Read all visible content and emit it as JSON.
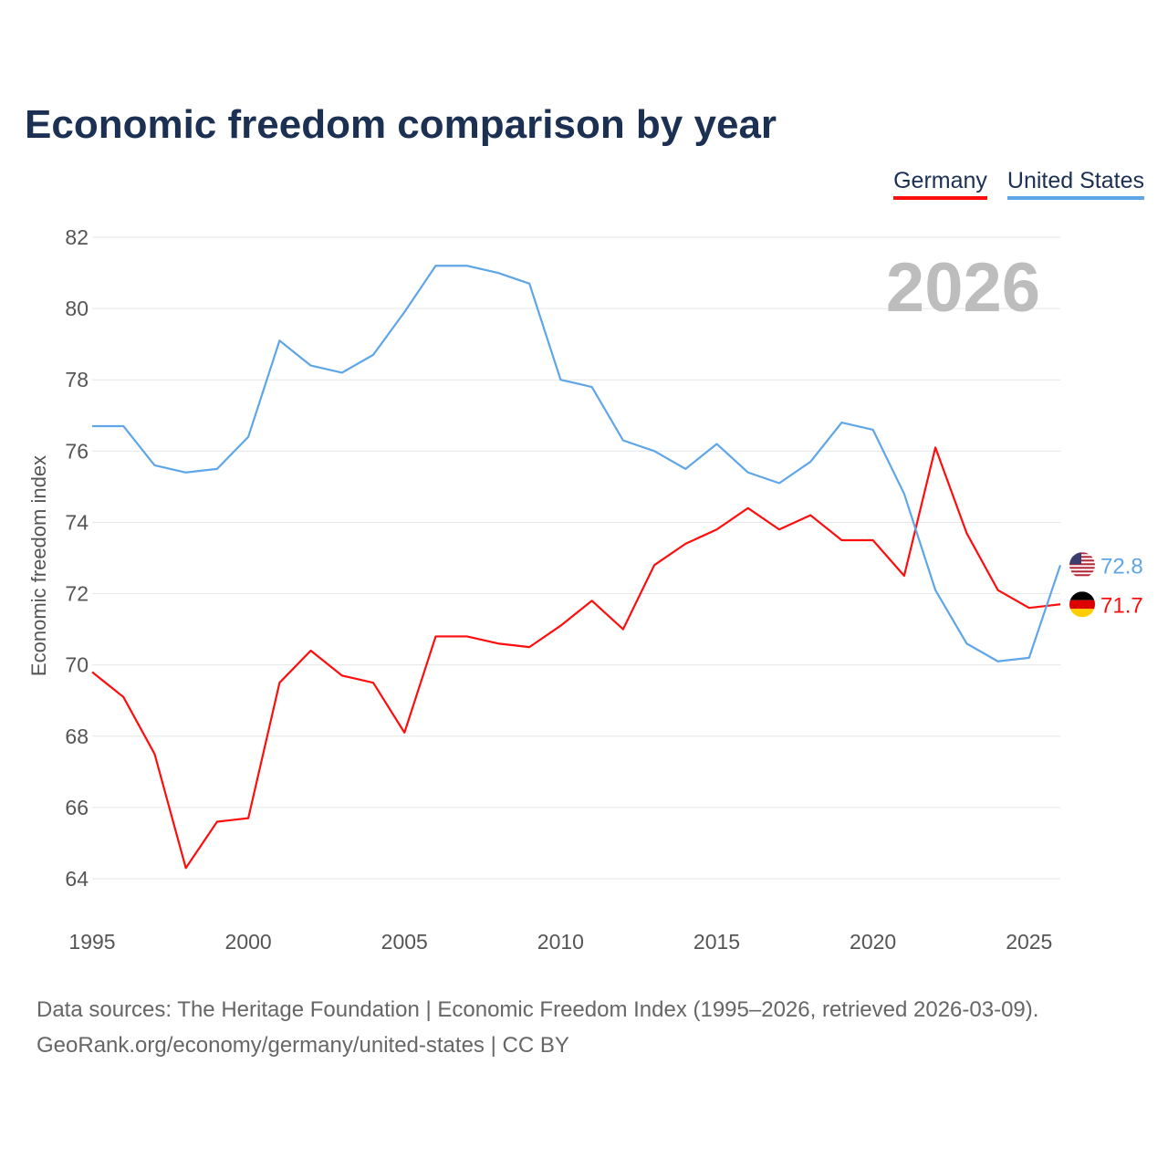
{
  "title": "Economic freedom comparison by year",
  "footer": {
    "line1": "Data sources: The Heritage Foundation | Economic Freedom Index (1995–2026, retrieved 2026-03-09).",
    "line2": "GeoRank.org/economy/germany/united-states | CC BY"
  },
  "chart_data": {
    "type": "line",
    "title": "Economic freedom comparison by year",
    "xlabel": "",
    "ylabel": "Economic freedom index",
    "xlim": [
      1995,
      2026
    ],
    "ylim": [
      63,
      82.5
    ],
    "yticks": [
      64,
      66,
      68,
      70,
      72,
      74,
      76,
      78,
      80,
      82
    ],
    "xticks": [
      1995,
      2000,
      2005,
      2010,
      2015,
      2020,
      2025
    ],
    "grid": true,
    "legend_position": "top-right",
    "annotation": "2026",
    "x": [
      1995,
      1996,
      1997,
      1998,
      1999,
      2000,
      2001,
      2002,
      2003,
      2004,
      2005,
      2006,
      2007,
      2008,
      2009,
      2010,
      2011,
      2012,
      2013,
      2014,
      2015,
      2016,
      2017,
      2018,
      2019,
      2020,
      2021,
      2022,
      2023,
      2024,
      2025,
      2026
    ],
    "series": [
      {
        "name": "Germany",
        "color": "#ff0d0d",
        "end_label": "71.7",
        "values": [
          69.8,
          69.1,
          67.5,
          64.3,
          65.6,
          65.7,
          69.5,
          70.4,
          69.7,
          69.5,
          68.1,
          70.8,
          70.8,
          70.6,
          70.5,
          71.1,
          71.8,
          71.0,
          72.8,
          73.4,
          73.8,
          74.4,
          73.8,
          74.2,
          73.5,
          73.5,
          72.5,
          76.1,
          73.7,
          72.1,
          71.6,
          71.7
        ]
      },
      {
        "name": "United States",
        "color": "#5ea6e8",
        "end_label": "72.8",
        "values": [
          76.7,
          76.7,
          75.6,
          75.4,
          75.5,
          76.4,
          79.1,
          78.4,
          78.2,
          78.7,
          79.9,
          81.2,
          81.2,
          81.0,
          80.7,
          78.0,
          77.8,
          76.3,
          76.0,
          75.5,
          76.2,
          75.4,
          75.1,
          75.7,
          76.8,
          76.6,
          74.8,
          72.1,
          70.6,
          70.1,
          70.2,
          72.8
        ]
      }
    ]
  }
}
